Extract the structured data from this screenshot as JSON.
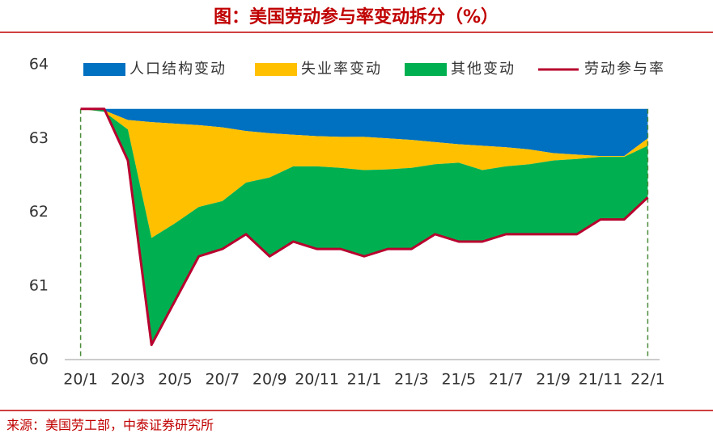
{
  "chart_data": {
    "type": "area",
    "title": "图：美国劳动参与率变动拆分（%）",
    "source": "来源：美国劳工部，中泰证券研究所",
    "categories": [
      "20/1",
      null,
      "20/3",
      null,
      "20/5",
      null,
      "20/7",
      null,
      "20/9",
      null,
      "20/11",
      null,
      "21/1",
      null,
      "21/3",
      null,
      "21/5",
      null,
      "21/7",
      null,
      "21/9",
      null,
      "21/11",
      null,
      "22/1"
    ],
    "series": [
      {
        "name": "人口结构变动",
        "color": "#0070c0",
        "values": [
          0,
          -0.02,
          -0.15,
          -0.18,
          -0.2,
          -0.22,
          -0.25,
          -0.3,
          -0.33,
          -0.35,
          -0.37,
          -0.38,
          -0.38,
          -0.4,
          -0.42,
          -0.45,
          -0.48,
          -0.5,
          -0.52,
          -0.55,
          -0.6,
          -0.62,
          -0.64,
          -0.64,
          -0.4
        ]
      },
      {
        "name": "失业率变动",
        "color": "#ffc000",
        "values": [
          0,
          -0.02,
          -0.13,
          -1.57,
          -1.35,
          -1.11,
          -1.0,
          -0.7,
          -0.6,
          -0.43,
          -0.41,
          -0.42,
          -0.45,
          -0.42,
          -0.38,
          -0.3,
          -0.25,
          -0.33,
          -0.26,
          -0.2,
          -0.1,
          -0.06,
          -0.01,
          -0.01,
          -0.1
        ]
      },
      {
        "name": "其他变动",
        "color": "#00b050",
        "values": [
          0,
          0.04,
          -0.42,
          -1.45,
          -1.05,
          -0.67,
          -0.65,
          -0.7,
          -1.07,
          -1.02,
          -1.12,
          -1.1,
          -1.17,
          -1.08,
          -1.1,
          -0.95,
          -1.07,
          -0.97,
          -0.92,
          -0.95,
          -1.0,
          -1.02,
          -0.85,
          -0.85,
          -0.7
        ]
      },
      {
        "name": "劳动参与率",
        "type": "line",
        "color": "#b8002e",
        "values": [
          63.4,
          63.4,
          62.7,
          60.2,
          60.8,
          61.4,
          61.5,
          61.7,
          61.4,
          61.6,
          61.5,
          61.5,
          61.4,
          61.5,
          61.5,
          61.7,
          61.6,
          61.6,
          61.7,
          61.7,
          61.7,
          61.7,
          61.9,
          61.9,
          62.2
        ]
      }
    ],
    "ylim": [
      60,
      64
    ],
    "yticks": [
      60,
      61,
      62,
      63,
      64
    ]
  }
}
